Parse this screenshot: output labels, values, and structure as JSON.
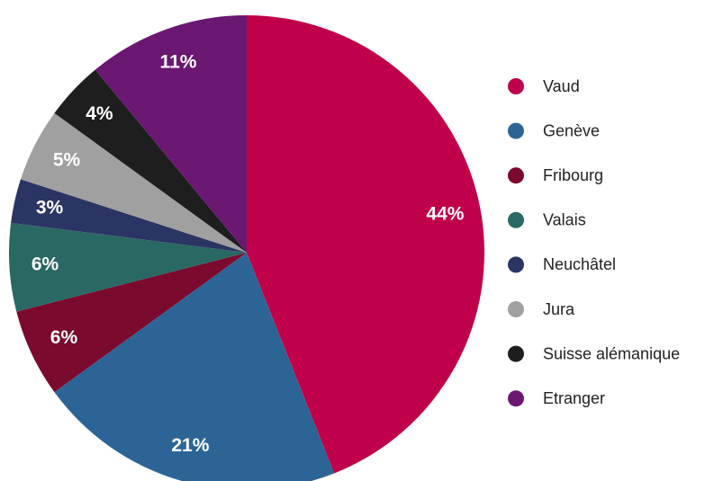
{
  "chart_data": {
    "type": "pie",
    "categories": [
      "Vaud",
      "Genève",
      "Fribourg",
      "Valais",
      "Neuchâtel",
      "Jura",
      "Suisse alémanique",
      "Etranger"
    ],
    "values": [
      44,
      21,
      6,
      6,
      3,
      5,
      4,
      11
    ],
    "value_labels": [
      "44%",
      "21%",
      "6%",
      "6%",
      "3%",
      "5%",
      "4%",
      "11%"
    ],
    "colors": [
      "#c0004a",
      "#2d6496",
      "#7a0a2e",
      "#2a6864",
      "#2b3563",
      "#a0a0a0",
      "#1e1e1e",
      "#6a1872"
    ],
    "legend": "right"
  }
}
